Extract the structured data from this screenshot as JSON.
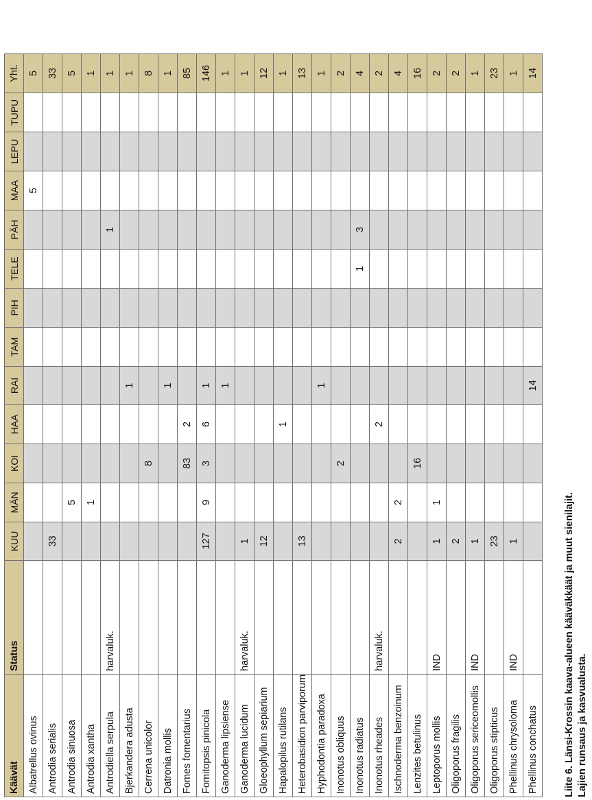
{
  "title": "Liite 6. Länsi-Krossin kaava-alueen kääväkkäät ja muut sienilajit.",
  "subtitle": "Lajien runsaus ja kasvualusta.",
  "table": {
    "species_header": "Käävät",
    "status_header": "Status",
    "area_columns": [
      "KUU",
      "MÄN",
      "KOI",
      "HAA",
      "RAI",
      "TAM",
      "PIH",
      "TELE",
      "PÄH",
      "MAA",
      "LEPU",
      "TUPU"
    ],
    "total_header": "Yht.",
    "rows": [
      {
        "species": "Albatrellus ovinus",
        "status": "",
        "values": [
          "",
          "",
          "",
          "",
          "",
          "",
          "",
          "",
          "",
          "5",
          "",
          ""
        ],
        "total": "5"
      },
      {
        "species": "Antrodia serialis",
        "status": "",
        "values": [
          "33",
          "",
          "",
          "",
          "",
          "",
          "",
          "",
          "",
          "",
          "",
          ""
        ],
        "total": "33"
      },
      {
        "species": "Antrodia sinuosa",
        "status": "",
        "values": [
          "",
          "5",
          "",
          "",
          "",
          "",
          "",
          "",
          "",
          "",
          "",
          ""
        ],
        "total": "5"
      },
      {
        "species": "Antrodia xantha",
        "status": "",
        "values": [
          "",
          "1",
          "",
          "",
          "",
          "",
          "",
          "",
          "",
          "",
          "",
          ""
        ],
        "total": "1"
      },
      {
        "species": "Antrodiella serpula",
        "status": "harvaluk.",
        "values": [
          "",
          "",
          "",
          "",
          "",
          "",
          "",
          "",
          "1",
          "",
          "",
          ""
        ],
        "total": "1"
      },
      {
        "species": "Bjerkandera adusta",
        "status": "",
        "values": [
          "",
          "",
          "",
          "",
          "1",
          "",
          "",
          "",
          "",
          "",
          "",
          ""
        ],
        "total": "1"
      },
      {
        "species": "Cerrena unicolor",
        "status": "",
        "values": [
          "",
          "",
          "8",
          "",
          "",
          "",
          "",
          "",
          "",
          "",
          "",
          ""
        ],
        "total": "8"
      },
      {
        "species": "Datronia mollis",
        "status": "",
        "values": [
          "",
          "",
          "",
          "",
          "1",
          "",
          "",
          "",
          "",
          "",
          "",
          ""
        ],
        "total": "1"
      },
      {
        "species": "Fomes fomentarius",
        "status": "",
        "values": [
          "",
          "",
          "83",
          "2",
          "",
          "",
          "",
          "",
          "",
          "",
          "",
          ""
        ],
        "total": "85"
      },
      {
        "species": "Fomitopsis pinicola",
        "status": "",
        "values": [
          "127",
          "9",
          "3",
          "6",
          "1",
          "",
          "",
          "",
          "",
          "",
          "",
          ""
        ],
        "total": "146"
      },
      {
        "species": "Ganoderma lipsiense",
        "status": "",
        "values": [
          "",
          "",
          "",
          "",
          "1",
          "",
          "",
          "",
          "",
          "",
          "",
          ""
        ],
        "total": "1"
      },
      {
        "species": "Ganoderma lucidum",
        "status": "harvaluk.",
        "values": [
          "1",
          "",
          "",
          "",
          "",
          "",
          "",
          "",
          "",
          "",
          "",
          ""
        ],
        "total": "1"
      },
      {
        "species": "Gloeophyllum sepiarium",
        "status": "",
        "values": [
          "12",
          "",
          "",
          "",
          "",
          "",
          "",
          "",
          "",
          "",
          "",
          ""
        ],
        "total": "12"
      },
      {
        "species": "Hapalopilus rutilans",
        "status": "",
        "values": [
          "",
          "",
          "",
          "1",
          "",
          "",
          "",
          "",
          "",
          "",
          "",
          ""
        ],
        "total": "1"
      },
      {
        "species": "Heterobasidion parviporum",
        "status": "",
        "values": [
          "13",
          "",
          "",
          "",
          "",
          "",
          "",
          "",
          "",
          "",
          "",
          ""
        ],
        "total": "13"
      },
      {
        "species": "Hyphodontia paradoxa",
        "status": "",
        "values": [
          "",
          "",
          "",
          "",
          "1",
          "",
          "",
          "",
          "",
          "",
          "",
          ""
        ],
        "total": "1"
      },
      {
        "species": "Inonotus obliquus",
        "status": "",
        "values": [
          "",
          "",
          "2",
          "",
          "",
          "",
          "",
          "",
          "",
          "",
          "",
          ""
        ],
        "total": "2"
      },
      {
        "species": "Inonotus radiatus",
        "status": "",
        "values": [
          "",
          "",
          "",
          "",
          "",
          "",
          "",
          "1",
          "3",
          "",
          "",
          ""
        ],
        "total": "4"
      },
      {
        "species": "Inonotus rheades",
        "status": "harvaluk.",
        "values": [
          "",
          "",
          "",
          "2",
          "",
          "",
          "",
          "",
          "",
          "",
          "",
          ""
        ],
        "total": "2"
      },
      {
        "species": "Ischnoderma benzoinum",
        "status": "",
        "values": [
          "2",
          "2",
          "",
          "",
          "",
          "",
          "",
          "",
          "",
          "",
          "",
          ""
        ],
        "total": "4"
      },
      {
        "species": "Lenzites betulinus",
        "status": "",
        "values": [
          "",
          "",
          "16",
          "",
          "",
          "",
          "",
          "",
          "",
          "",
          "",
          ""
        ],
        "total": "16"
      },
      {
        "species": "Leptoporus mollis",
        "status": "IND",
        "values": [
          "1",
          "1",
          "",
          "",
          "",
          "",
          "",
          "",
          "",
          "",
          "",
          ""
        ],
        "total": "2"
      },
      {
        "species": "Oligoporus fragilis",
        "status": "",
        "values": [
          "2",
          "",
          "",
          "",
          "",
          "",
          "",
          "",
          "",
          "",
          "",
          ""
        ],
        "total": "2"
      },
      {
        "species": "Oligoporus sericeomollis",
        "status": "IND",
        "values": [
          "1",
          "",
          "",
          "",
          "",
          "",
          "",
          "",
          "",
          "",
          "",
          ""
        ],
        "total": "1"
      },
      {
        "species": "Oligoporus stipticus",
        "status": "",
        "values": [
          "23",
          "",
          "",
          "",
          "",
          "",
          "",
          "",
          "",
          "",
          "",
          ""
        ],
        "total": "23"
      },
      {
        "species": "Phellinus chrysoloma",
        "status": "IND",
        "values": [
          "1",
          "",
          "",
          "",
          "",
          "",
          "",
          "",
          "",
          "",
          "",
          ""
        ],
        "total": "1"
      },
      {
        "species": "Phellinus conchatus",
        "status": "",
        "values": [
          "",
          "",
          "",
          "",
          "14",
          "",
          "",
          "",
          "",
          "",
          "",
          ""
        ],
        "total": "14"
      }
    ]
  }
}
